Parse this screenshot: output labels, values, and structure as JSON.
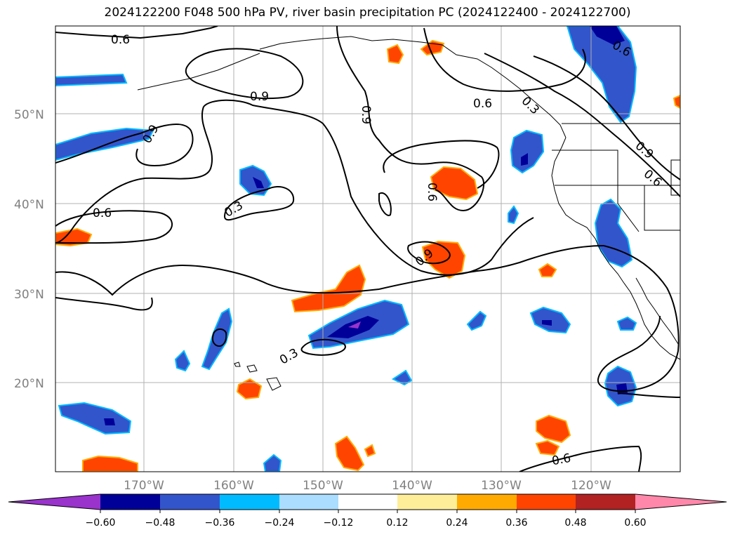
{
  "title": "2024122200 F048 500 hPa PV, river basin precipitation PC (2024122400 - 2024122700)",
  "map": {
    "lat_labels": [
      "50°N",
      "40°N",
      "30°N",
      "20°N"
    ],
    "lon_labels": [
      "170°W",
      "160°W",
      "150°W",
      "140°W",
      "130°W",
      "120°W"
    ],
    "contour_labels": [
      "0.6",
      "0.9",
      "0.9",
      "0.9",
      "0.6",
      "0.6",
      "0.3",
      "0.9",
      "0.6",
      "0.6",
      "0.9",
      "0.6",
      "0.6",
      "0.3",
      "0.3"
    ],
    "colors": {
      "gridline": "#b0b0b0",
      "coast": "#000000",
      "contour": "#000000"
    }
  },
  "colorbar": {
    "ticks": [
      "−0.60",
      "−0.48",
      "−0.36",
      "−0.24",
      "−0.12",
      "0.12",
      "0.24",
      "0.36",
      "0.48",
      "0.60"
    ],
    "colors": [
      "#9933cc",
      "#000099",
      "#3355cc",
      "#00bbff",
      "#aaddff",
      "#ffffff",
      "#ffee99",
      "#ffaa00",
      "#ff4400",
      "#b22222",
      "#ff88aa"
    ]
  }
}
